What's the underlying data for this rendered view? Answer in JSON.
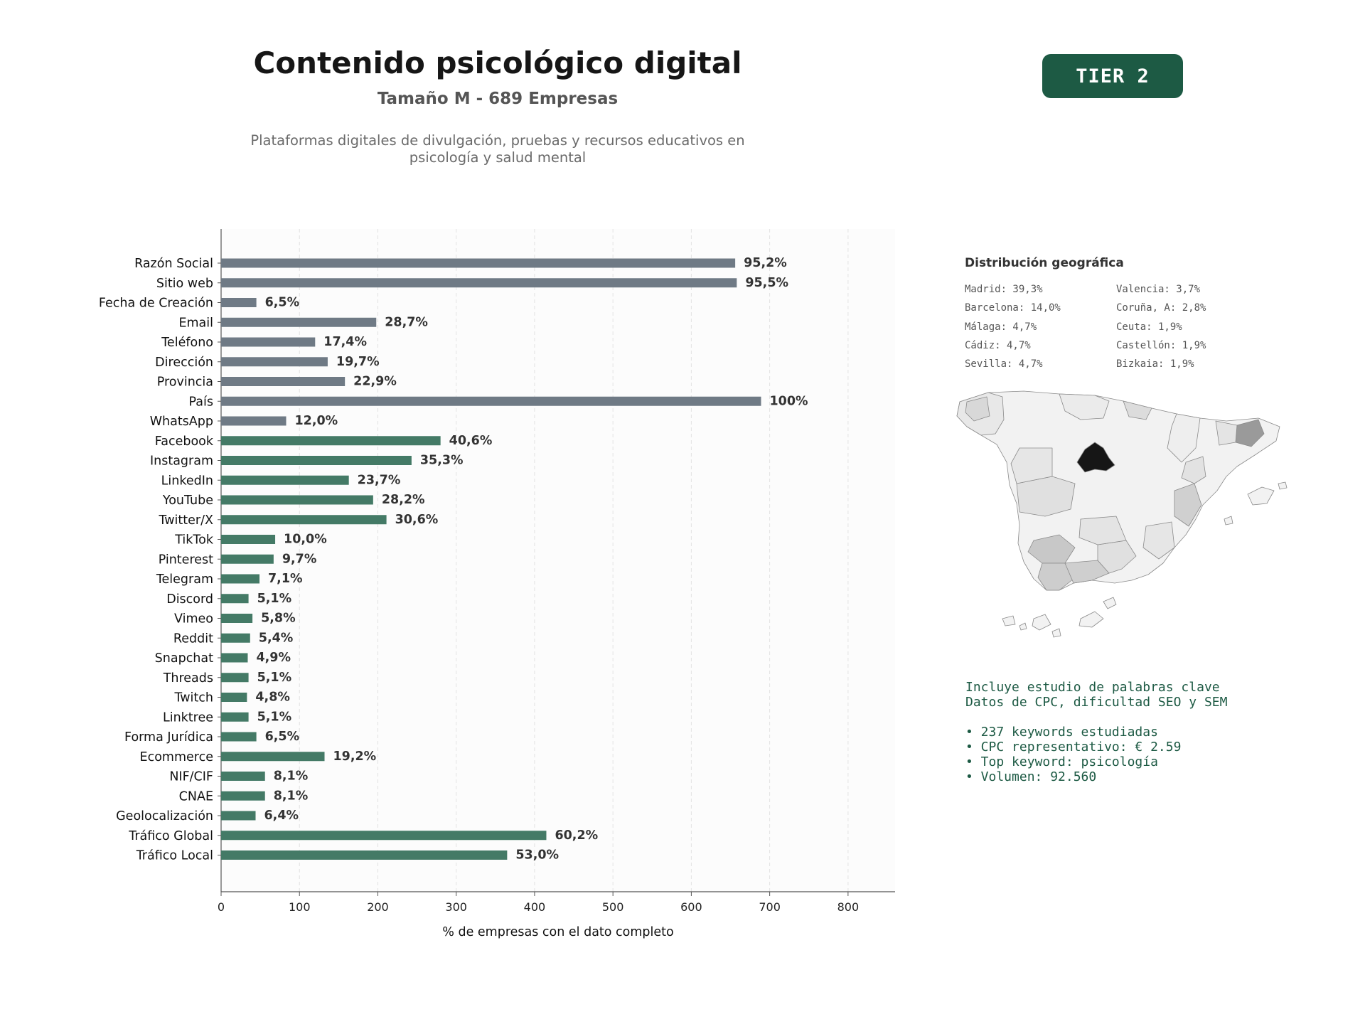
{
  "header": {
    "title": "Contenido psicológico digital",
    "subtitle": "Tamaño M - 689 Empresas",
    "description_line1": "Plataformas digitales de divulgación, pruebas y recursos educativos en",
    "description_line2": "psicología y salud mental",
    "tier": "TIER 2"
  },
  "colors": {
    "gray_bar": "#6f7a85",
    "green_bar": "#447a66",
    "badge": "#1d5a44",
    "text_green": "#1d5a44"
  },
  "chart_data": {
    "type": "bar",
    "orientation": "horizontal",
    "categories": [
      "Razón Social",
      "Sitio web",
      "Fecha de Creación",
      "Email",
      "Teléfono",
      "Dirección",
      "Provincia",
      "País",
      "WhatsApp",
      "Facebook",
      "Instagram",
      "LinkedIn",
      "YouTube",
      "Twitter/X",
      "TikTok",
      "Pinterest",
      "Telegram",
      "Discord",
      "Vimeo",
      "Reddit",
      "Snapchat",
      "Threads",
      "Twitch",
      "Linktree",
      "Forma Jurídica",
      "Ecommerce",
      "NIF/CIF",
      "CNAE",
      "Geolocalización",
      "Tráfico Global",
      "Tráfico Local"
    ],
    "values": [
      656,
      658,
      45,
      198,
      120,
      136,
      158,
      689,
      83,
      280,
      243,
      163,
      194,
      211,
      69,
      67,
      49,
      35,
      40,
      37,
      34,
      35,
      33,
      35,
      45,
      132,
      56,
      56,
      44,
      415,
      365
    ],
    "labels": [
      "95,2%",
      "95,5%",
      "6,5%",
      "28,7%",
      "17,4%",
      "19,7%",
      "22,9%",
      "100%",
      "12,0%",
      "40,6%",
      "35,3%",
      "23,7%",
      "28,2%",
      "30,6%",
      "10,0%",
      "9,7%",
      "7,1%",
      "5,1%",
      "5,8%",
      "5,4%",
      "4,9%",
      "5,1%",
      "4,8%",
      "5,1%",
      "6,5%",
      "19,2%",
      "8,1%",
      "8,1%",
      "6,4%",
      "60,2%",
      "53,0%"
    ],
    "group": [
      "gray",
      "gray",
      "gray",
      "gray",
      "gray",
      "gray",
      "gray",
      "gray",
      "gray",
      "green",
      "green",
      "green",
      "green",
      "green",
      "green",
      "green",
      "green",
      "green",
      "green",
      "green",
      "green",
      "green",
      "green",
      "green",
      "green",
      "green",
      "green",
      "green",
      "green",
      "green",
      "green"
    ],
    "xlabel": "% de empresas con el dato completo",
    "xlim": [
      0,
      860
    ],
    "xticks": [
      0,
      100,
      200,
      300,
      400,
      500,
      600,
      700,
      800
    ],
    "grid": "vertical dashed"
  },
  "geo": {
    "title": "Distribución geográfica",
    "left": [
      "Madrid: 39,3%",
      "Barcelona: 14,0%",
      "Málaga: 4,7%",
      "Cádiz: 4,7%",
      "Sevilla: 4,7%"
    ],
    "right": [
      "Valencia: 3,7%",
      "Coruña, A: 2,8%",
      "Ceuta: 1,9%",
      "Castellón: 1,9%",
      "Bizkaia: 1,9%"
    ]
  },
  "keywords": {
    "line1": "Incluye estudio de palabras clave",
    "line2": "Datos de CPC, dificultad SEO y SEM",
    "items": [
      "• 237 keywords estudiadas",
      "• CPC representativo: € 2.59",
      "• Top keyword: psicología",
      "• Volumen: 92.560"
    ]
  }
}
